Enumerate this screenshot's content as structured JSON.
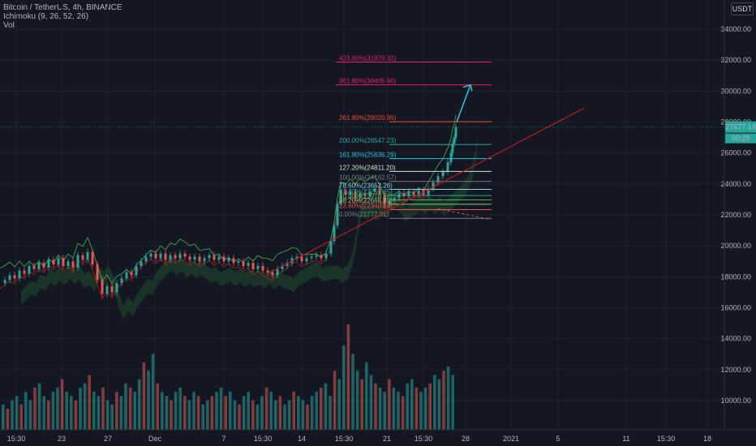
{
  "legend": {
    "symbol": "Bitcoin / TetherUS, 4h, BINANCE",
    "ichimoku": "Ichimoku (9, 26, 52, 26)",
    "vol": "Vol"
  },
  "currency": "USDT",
  "colors": {
    "background": "#131722",
    "up": "#26a69a",
    "down": "#ef5350",
    "ichimoku_lead": "#4caf50",
    "ichimoku_base": "#b71c1c",
    "cloud": "#1b3a28",
    "cloud_red": "#3b1b1b",
    "trendline": "#b71c1c",
    "arrow": "#26c6da",
    "price_label": "#26a69a"
  },
  "chart_data": {
    "type": "candlestick",
    "title": "Bitcoin / TetherUS, 4h, BINANCE",
    "x_ticks": [
      "15:30",
      "23",
      "27",
      "Dec",
      "7",
      "15:30",
      "14",
      "15:30",
      "21",
      "15:30",
      "28",
      "2021",
      "5",
      "11",
      "15:30",
      "18"
    ],
    "y_ticks": [
      10000,
      12000,
      14000,
      16000,
      18000,
      20000,
      22000,
      24000,
      26000,
      28000,
      30000,
      32000,
      34000
    ],
    "y_tick_labels": [
      "10000.00",
      "12000.00",
      "14000.00",
      "16000.00",
      "18000.00",
      "20000.00",
      "22000.00",
      "24000.00",
      "26000.00",
      "28000.00",
      "30000.00",
      "32000.00",
      "34000.00"
    ],
    "ylim": [
      9000,
      35000
    ],
    "last_price": "27677.14",
    "countdown": "00:29",
    "fib_levels": [
      {
        "label": "423.60%(31879.32)",
        "value": 31879.32,
        "color": "#e91e63"
      },
      {
        "label": "361.80%(30405.60)",
        "value": 30405.6,
        "color": "#e91e63"
      },
      {
        "label": "261.80%(28020.95)",
        "value": 28020.95,
        "color": "#f44336"
      },
      {
        "label": "200.00%(26547.23)",
        "value": 26547.23,
        "color": "#26a69a"
      },
      {
        "label": "161.80%(25636.29)",
        "value": 25636.29,
        "color": "#26c6da"
      },
      {
        "label": "127.20%(24811.20)",
        "value": 24811.2,
        "color": "#c8e6c9"
      },
      {
        "label": "100.00%(24162.57)",
        "value": 24162.57,
        "color": "#787b86"
      },
      {
        "label": "78.60%(23652.26)",
        "value": 23652.26,
        "color": "#80deea"
      },
      {
        "label": "61.80%(23251.65)",
        "value": 23251.65,
        "color": "#26a69a"
      },
      {
        "label": "50.00%(22970.24)",
        "value": 22970.24,
        "color": "#4caf50"
      },
      {
        "label": "38.20%(22688.85)",
        "value": 22688.85,
        "color": "#81c784"
      },
      {
        "label": "23.60%(22340.69)",
        "value": 22340.69,
        "color": "#ef5350"
      },
      {
        "label": "0.00%(21777.91)",
        "value": 21777.91,
        "color": "#787b86"
      }
    ],
    "price_path": [
      [
        0,
        17600
      ],
      [
        6,
        17800
      ],
      [
        12,
        18100
      ],
      [
        18,
        17900
      ],
      [
        24,
        18400
      ],
      [
        30,
        18200
      ],
      [
        36,
        18700
      ],
      [
        42,
        18500
      ],
      [
        48,
        18900
      ],
      [
        54,
        18600
      ],
      [
        60,
        19100
      ],
      [
        66,
        18800
      ],
      [
        72,
        19200
      ],
      [
        78,
        18700
      ],
      [
        84,
        19000
      ],
      [
        90,
        18600
      ],
      [
        96,
        19400
      ],
      [
        102,
        19100
      ],
      [
        108,
        19600
      ],
      [
        114,
        18800
      ],
      [
        120,
        17800
      ],
      [
        126,
        16900
      ],
      [
        132,
        17400
      ],
      [
        138,
        17000
      ],
      [
        144,
        17600
      ],
      [
        150,
        17900
      ],
      [
        156,
        18300
      ],
      [
        162,
        18100
      ],
      [
        168,
        18700
      ],
      [
        174,
        19000
      ],
      [
        180,
        19300
      ],
      [
        186,
        19500
      ],
      [
        192,
        19200
      ],
      [
        198,
        19500
      ],
      [
        204,
        19100
      ],
      [
        210,
        19400
      ],
      [
        216,
        19200
      ],
      [
        222,
        19500
      ],
      [
        228,
        19300
      ],
      [
        234,
        19100
      ],
      [
        240,
        19300
      ],
      [
        246,
        19000
      ],
      [
        252,
        19200
      ],
      [
        258,
        19400
      ],
      [
        264,
        19100
      ],
      [
        270,
        19300
      ],
      [
        276,
        19000
      ],
      [
        282,
        19200
      ],
      [
        288,
        18900
      ],
      [
        294,
        19000
      ],
      [
        300,
        18700
      ],
      [
        306,
        18900
      ],
      [
        312,
        18500
      ],
      [
        318,
        18700
      ],
      [
        324,
        18400
      ],
      [
        330,
        18300
      ],
      [
        336,
        18100
      ],
      [
        342,
        18500
      ],
      [
        348,
        18700
      ],
      [
        354,
        18900
      ],
      [
        360,
        19200
      ],
      [
        366,
        19300
      ],
      [
        372,
        19000
      ],
      [
        378,
        19200
      ],
      [
        384,
        19300
      ],
      [
        390,
        19400
      ],
      [
        396,
        19200
      ],
      [
        402,
        19500
      ],
      [
        408,
        20300
      ],
      [
        412,
        21300
      ],
      [
        416,
        22700
      ],
      [
        420,
        23600
      ],
      [
        426,
        23300
      ],
      [
        432,
        23500
      ],
      [
        438,
        23100
      ],
      [
        444,
        23400
      ],
      [
        450,
        23200
      ],
      [
        456,
        23500
      ],
      [
        462,
        23700
      ],
      [
        468,
        23300
      ],
      [
        474,
        22700
      ],
      [
        480,
        22900
      ],
      [
        486,
        23100
      ],
      [
        492,
        23400
      ],
      [
        498,
        23200
      ],
      [
        504,
        23500
      ],
      [
        510,
        23300
      ],
      [
        516,
        23600
      ],
      [
        522,
        23300
      ],
      [
        528,
        23700
      ],
      [
        534,
        24100
      ],
      [
        540,
        24500
      ],
      [
        546,
        24800
      ],
      [
        552,
        25400
      ],
      [
        556,
        26000
      ],
      [
        558,
        26600
      ],
      [
        560,
        27000
      ],
      [
        562,
        27677
      ]
    ],
    "volumes": [
      6,
      5,
      7,
      8,
      6,
      9,
      7,
      10,
      11,
      8,
      7,
      9,
      10,
      12,
      9,
      8,
      7,
      10,
      11,
      13,
      9,
      8,
      10,
      7,
      6,
      9,
      8,
      11,
      10,
      9,
      12,
      16,
      14,
      18,
      11,
      9,
      8,
      7,
      9,
      10,
      8,
      7,
      9,
      8,
      6,
      7,
      8,
      9,
      10,
      8,
      9,
      7,
      6,
      8,
      9,
      7,
      6,
      8,
      10,
      9,
      7,
      8,
      6,
      7,
      9,
      8,
      7,
      6,
      8,
      9,
      10,
      11,
      8,
      14,
      12,
      20,
      25,
      18,
      14,
      12,
      16,
      13,
      11,
      10,
      9,
      12,
      10,
      9,
      8,
      11,
      12,
      10,
      9,
      10,
      11,
      13,
      12,
      14,
      15,
      13
    ]
  },
  "axis_labels": {
    "fib_text_color": "#e91e63"
  }
}
